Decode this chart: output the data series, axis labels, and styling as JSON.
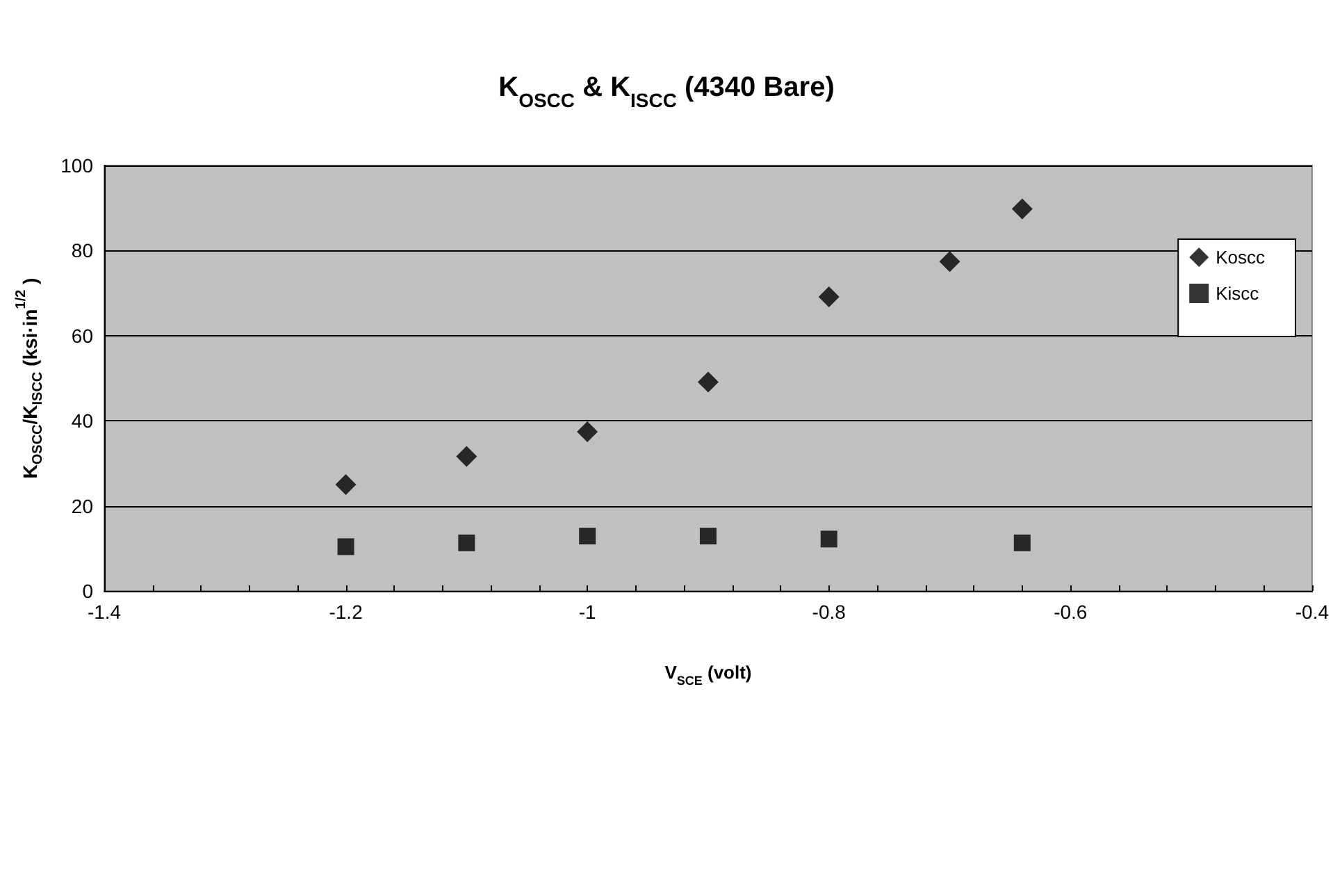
{
  "chart_data": {
    "type": "scatter",
    "title": "K$_{OSCC}$ & K$_{ISCC}$ (4340 Bare)",
    "xlabel": "V$_{SCE}$ (volt)",
    "ylabel": "K$_{OSCC}$/K$_{ISCC}$ (ksi·in$^{1/2}$ )",
    "x": [
      -1.2,
      -1.1,
      -1.0,
      -0.9,
      -0.8,
      -0.7,
      -0.64
    ],
    "series": [
      {
        "name": "Koscc",
        "color": "#000000",
        "marker": "diamond",
        "values": [
          25,
          31.6,
          37.4,
          49.1,
          69.1,
          77.4,
          89.8
        ]
      },
      {
        "name": "Kiscc",
        "color": "#000000",
        "marker": "square",
        "x": [
          -1.2,
          -1.1,
          -1.0,
          -0.9,
          -0.8,
          -0.64
        ],
        "values": [
          10.4,
          11.3,
          12.9,
          12.9,
          12.2,
          11.3
        ]
      }
    ],
    "xlim": [
      -1.4,
      -0.4
    ],
    "xticks": [
      -1.4,
      {
        "value": -1.36,
        "label": null
      },
      {
        "value": -1.32,
        "label": null
      },
      {
        "value": -1.28,
        "label": null
      },
      {
        "value": -1.24,
        "label": null
      },
      -1.2,
      {
        "value": -1.16,
        "label": null
      },
      {
        "value": -1.12,
        "label": null
      },
      {
        "value": -1.08,
        "label": null
      },
      {
        "value": -1.04,
        "label": null
      },
      -1,
      {
        "value": -0.96,
        "label": null
      },
      {
        "value": -0.92,
        "label": null
      },
      {
        "value": -0.88,
        "label": null
      },
      {
        "value": -0.84,
        "label": null
      },
      -0.8,
      {
        "value": -0.76,
        "label": null
      },
      {
        "value": -0.72,
        "label": null
      },
      {
        "value": -0.68,
        "label": null
      },
      {
        "value": -0.64,
        "label": null
      },
      -0.6,
      {
        "value": -0.56,
        "label": null
      },
      {
        "value": -0.52,
        "label": null
      },
      {
        "value": -0.48,
        "label": null
      },
      {
        "value": -0.44,
        "label": null
      },
      -0.4
    ],
    "ylim": [
      0,
      100
    ],
    "yticks": [
      0,
      20,
      40,
      60,
      80,
      100
    ],
    "grid": "y",
    "legend": "right"
  }
}
